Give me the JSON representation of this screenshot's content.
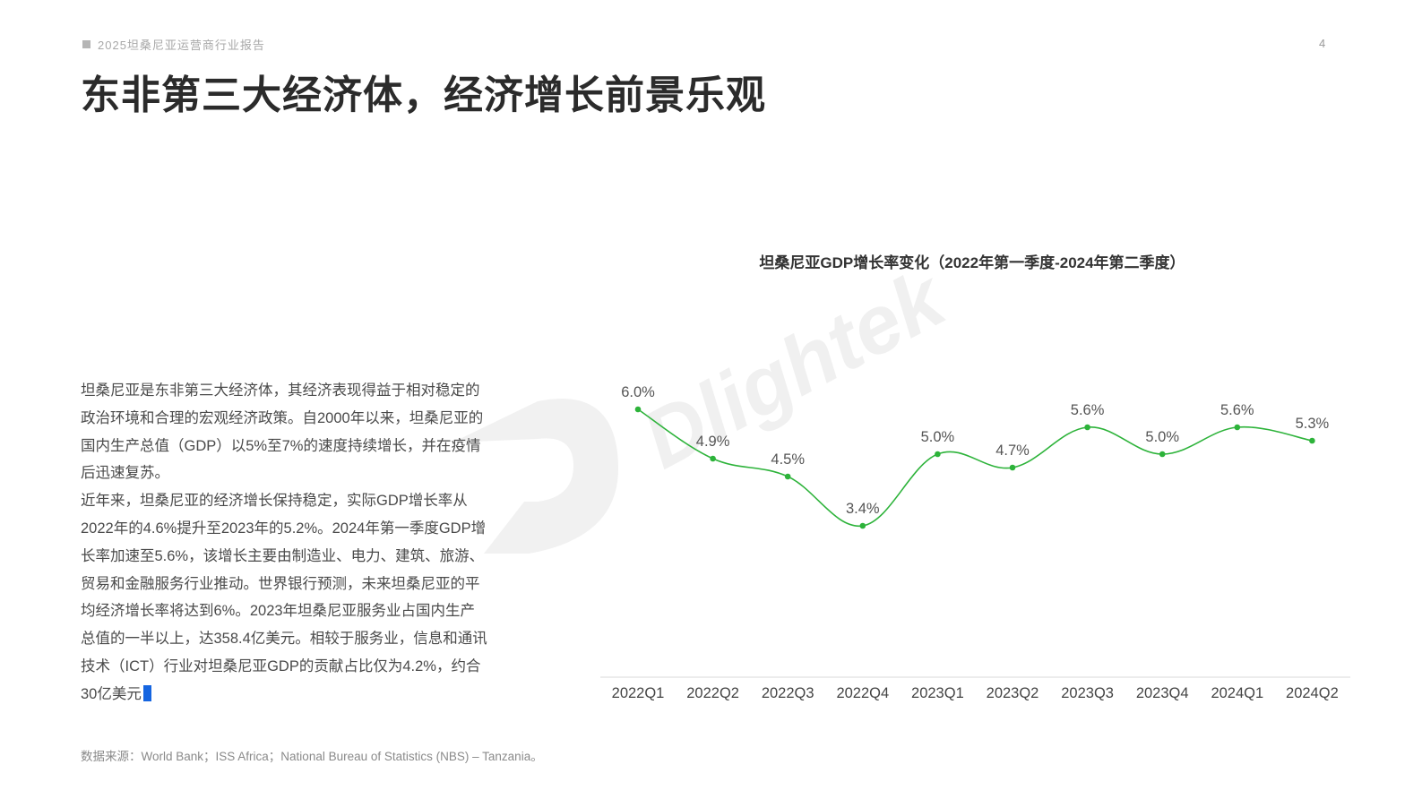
{
  "header": {
    "report_name": "2025坦桑尼亚运营商行业报告",
    "page_number": "4"
  },
  "title": "东非第三大经济体，经济增长前景乐观",
  "body": {
    "paragraph1": "坦桑尼亚是东非第三大经济体，其经济表现得益于相对稳定的政治环境和合理的宏观经济政策。自2000年以来，坦桑尼亚的国内生产总值（GDP）以5%至7%的速度持续增长，并在疫情后迅速复苏。",
    "paragraph2": "近年来，坦桑尼亚的经济增长保持稳定，实际GDP增长率从2022年的4.6%提升至2023年的5.2%。2024年第一季度GDP增长率加速至5.6%，该增长主要由制造业、电力、建筑、旅游、贸易和金融服务行业推动。世界银行预测，未来坦桑尼亚的平均经济增长率将达到6%。2023年坦桑尼亚服务业占国内生产总值的一半以上，达358.4亿美元。相较于服务业，信息和通讯技术（ICT）行业对坦桑尼亚GDP的贡献占比仅为4.2%，约合30亿美元"
  },
  "source": "数据来源：World Bank；ISS Africa；National Bureau of Statistics (NBS) – Tanzania。",
  "watermark": {
    "text": "Dlightek",
    "color": "#f0f0f0"
  },
  "chart_data": {
    "type": "line",
    "title": "坦桑尼亚GDP增长率变化（2022年第一季度-2024年第二季度）",
    "categories": [
      "2022Q1",
      "2022Q2",
      "2022Q3",
      "2022Q4",
      "2023Q1",
      "2023Q2",
      "2023Q3",
      "2023Q4",
      "2024Q1",
      "2024Q2"
    ],
    "values": [
      6.0,
      4.9,
      4.5,
      3.4,
      5.0,
      4.7,
      5.6,
      5.0,
      5.6,
      5.3
    ],
    "data_labels": [
      "6.0%",
      "4.9%",
      "4.5%",
      "3.4%",
      "5.0%",
      "4.7%",
      "5.6%",
      "5.0%",
      "5.6%",
      "5.3%"
    ],
    "line_color": "#2db33a",
    "ylim": [
      0,
      7
    ],
    "grid": false,
    "legend": "none"
  }
}
